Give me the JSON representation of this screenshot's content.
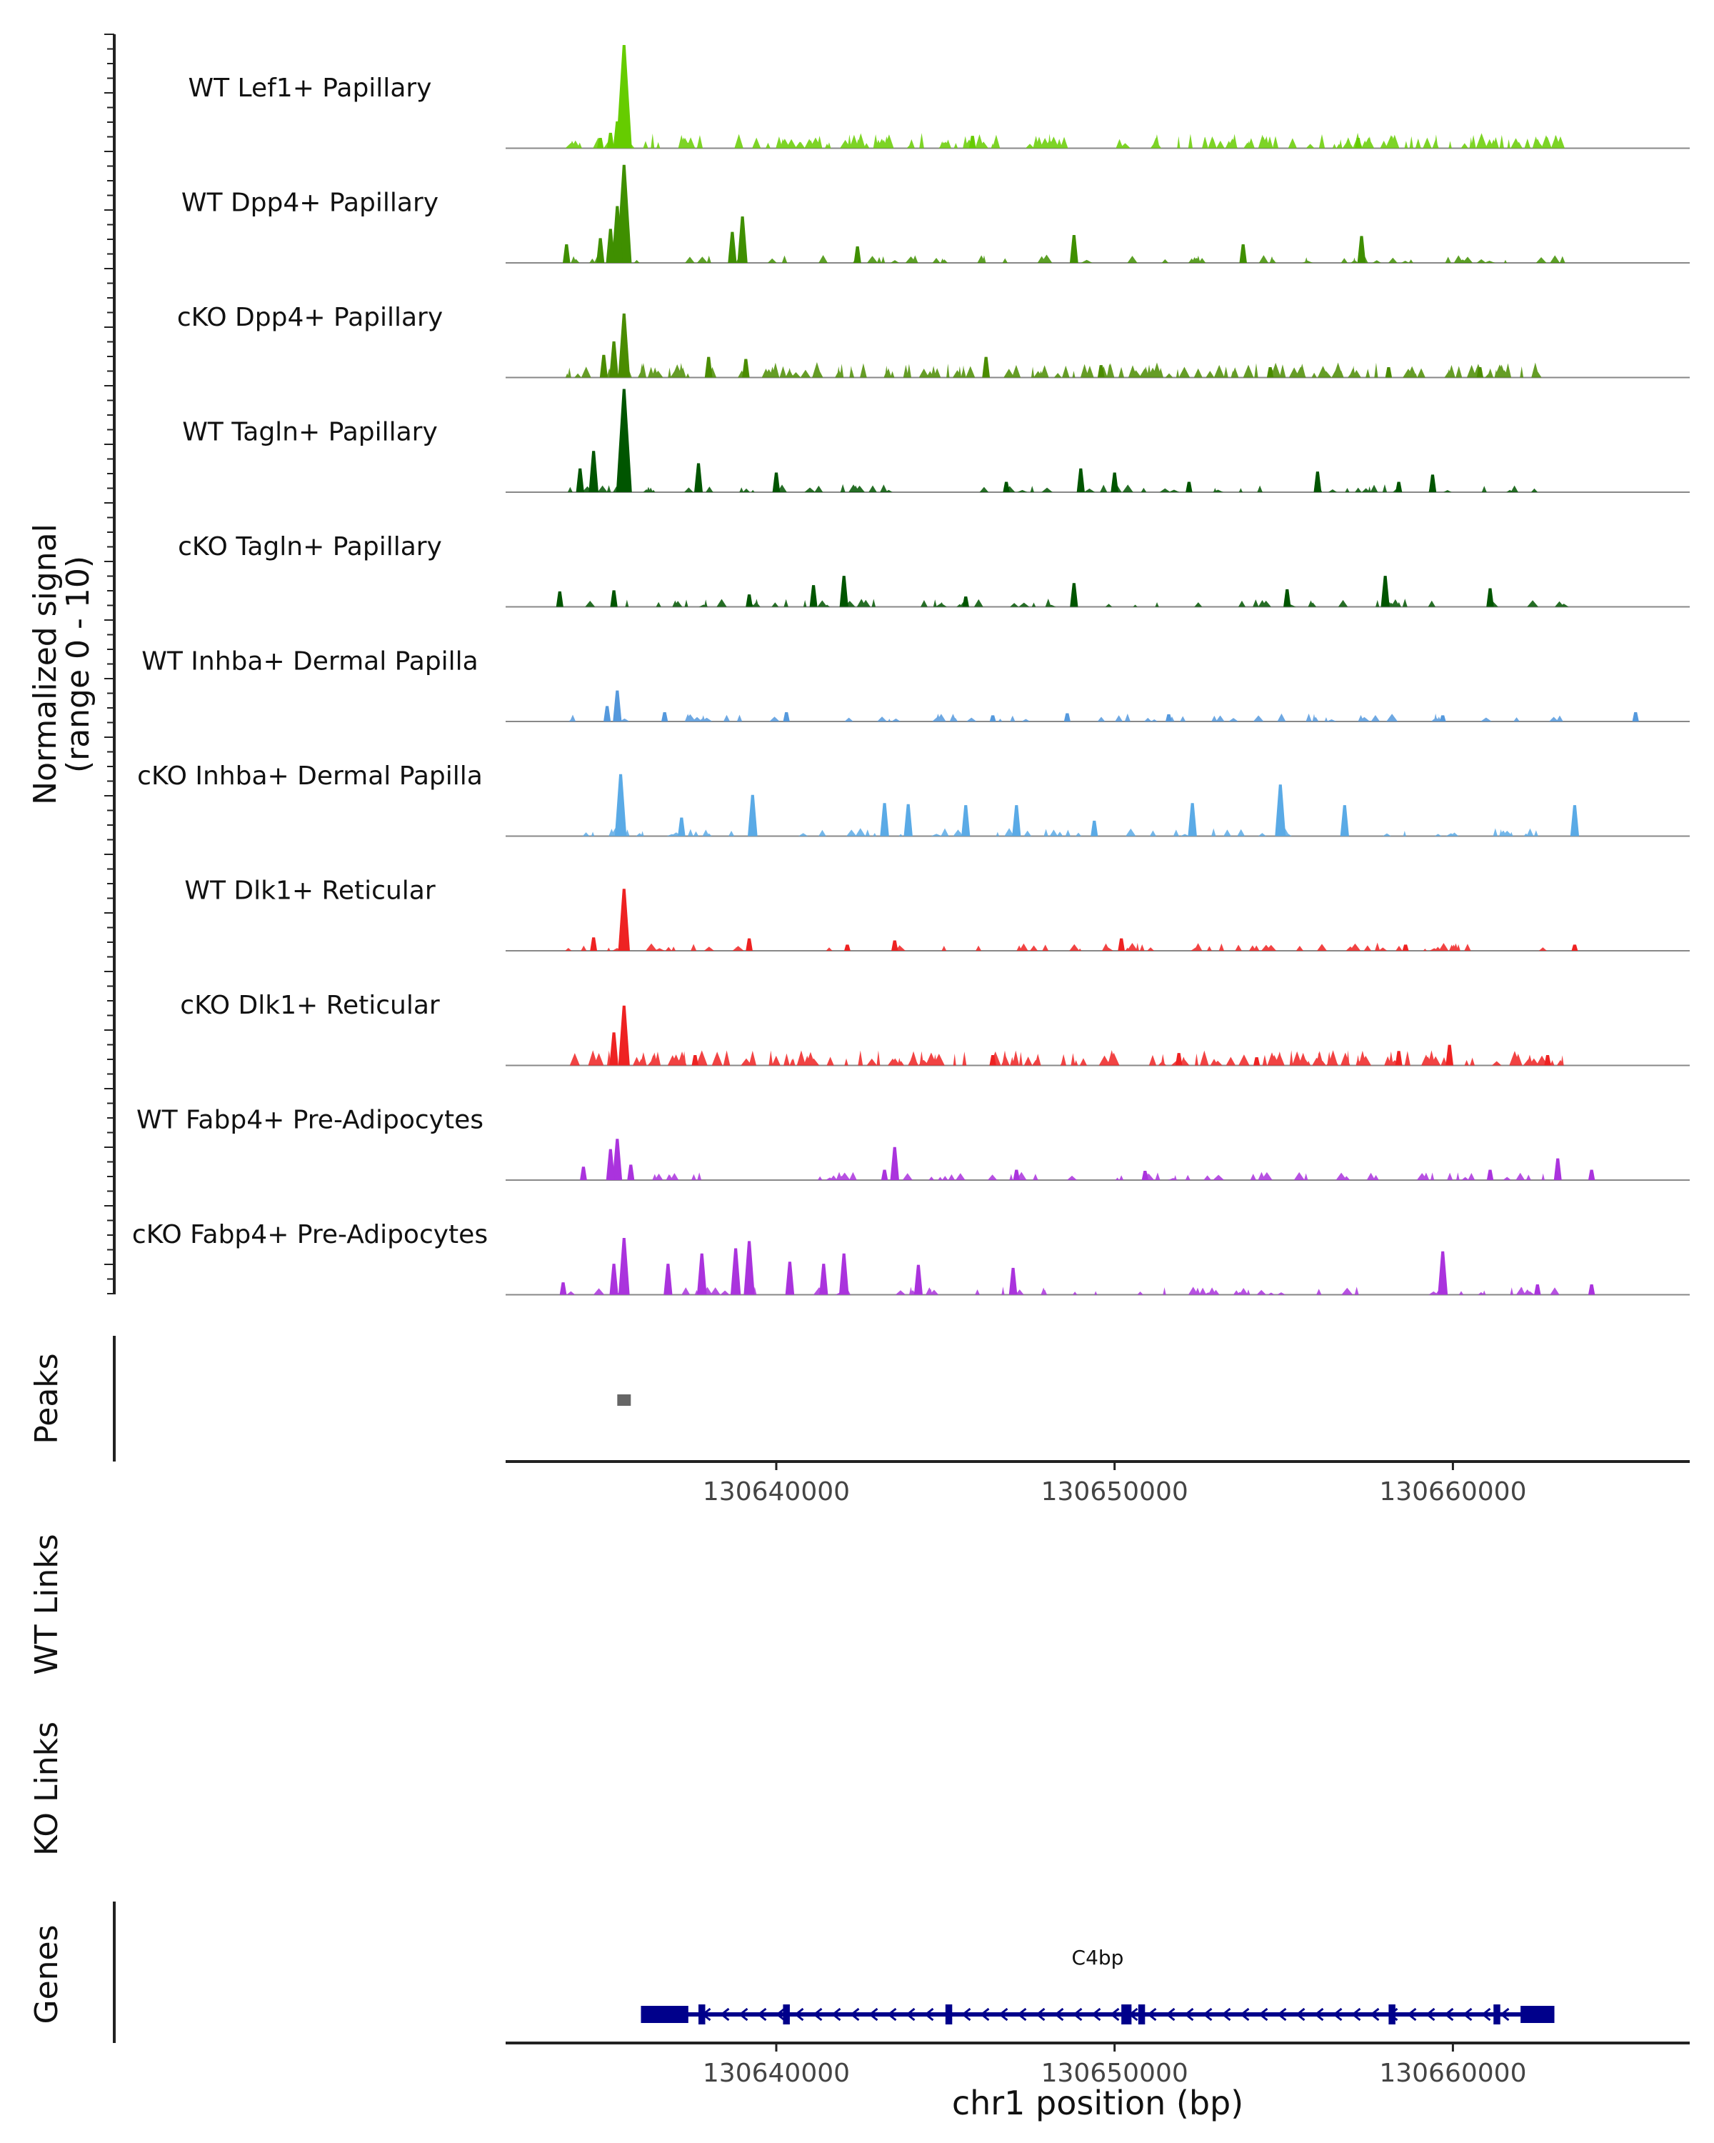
{
  "chart_data": {
    "type": "area",
    "chromosome": "chr1",
    "xlim": [
      130632000,
      130667000
    ],
    "x_ticks": [
      130640000,
      130650000,
      130660000
    ],
    "x_tick_labels": [
      "130640000",
      "130650000",
      "130660000"
    ],
    "xlabel": "chr1 position (bp)",
    "ylabel_line1": "Normalized signal",
    "ylabel_line2": "(range 0 - 10)",
    "ylim": [
      0,
      10
    ],
    "tracks": [
      {
        "name": "WT Lef1+ Papillary",
        "color": "#66cc00",
        "density": "dense",
        "peaks": [
          [
            130635500,
            10.0
          ],
          [
            130635300,
            2.6
          ],
          [
            130635100,
            1.5
          ],
          [
            130634800,
            1.0
          ],
          [
            130645800,
            1.2
          ],
          [
            130657200,
            1.0
          ]
        ]
      },
      {
        "name": "WT Dpp4+ Papillary",
        "color": "#3f8f00",
        "density": "sparse",
        "peaks": [
          [
            130635500,
            9.5
          ],
          [
            130635300,
            5.5
          ],
          [
            130635100,
            3.3
          ],
          [
            130634800,
            2.4
          ],
          [
            130633800,
            1.8
          ],
          [
            130639000,
            4.5
          ],
          [
            130638700,
            3.0
          ],
          [
            130648800,
            2.7
          ],
          [
            130657300,
            2.6
          ],
          [
            130653800,
            1.8
          ],
          [
            130642400,
            1.6
          ]
        ]
      },
      {
        "name": "cKO Dpp4+ Papillary",
        "color": "#4a8c00",
        "density": "dense",
        "peaks": [
          [
            130635500,
            6.2
          ],
          [
            130635200,
            3.5
          ],
          [
            130634900,
            2.2
          ],
          [
            130638000,
            2.0
          ],
          [
            130639100,
            1.8
          ],
          [
            130646200,
            2.0
          ],
          [
            130649600,
            1.2
          ],
          [
            130654600,
            1.0
          ],
          [
            130658100,
            1.0
          ],
          [
            130660800,
            1.0
          ]
        ]
      },
      {
        "name": "WT Tagln+ Papillary",
        "color": "#005500",
        "density": "sparse",
        "peaks": [
          [
            130635500,
            10.0
          ],
          [
            130634600,
            4.0
          ],
          [
            130634200,
            2.3
          ],
          [
            130637700,
            2.8
          ],
          [
            130640000,
            1.9
          ],
          [
            130646800,
            1.0
          ],
          [
            130649000,
            2.3
          ],
          [
            130650000,
            1.9
          ],
          [
            130656000,
            2.0
          ],
          [
            130659400,
            1.7
          ],
          [
            130658400,
            1.0
          ],
          [
            130652200,
            1.0
          ]
        ]
      },
      {
        "name": "cKO Tagln+ Papillary",
        "color": "#005500",
        "density": "sparse",
        "peaks": [
          [
            130642000,
            3.0
          ],
          [
            130641100,
            2.1
          ],
          [
            130635200,
            1.6
          ],
          [
            130633600,
            1.5
          ],
          [
            130648800,
            2.3
          ],
          [
            130658000,
            3.0
          ],
          [
            130661100,
            1.8
          ],
          [
            130655100,
            1.7
          ],
          [
            130645600,
            1.0
          ],
          [
            130639200,
            1.2
          ]
        ]
      },
      {
        "name": "WT Inhba+ Dermal Papilla",
        "color": "#5599dd",
        "density": "sparse",
        "peaks": [
          [
            130635300,
            3.0
          ],
          [
            130635000,
            1.5
          ],
          [
            130636700,
            0.9
          ],
          [
            130640300,
            0.9
          ],
          [
            130648600,
            0.8
          ],
          [
            130651600,
            0.7
          ],
          [
            130659700,
            0.6
          ],
          [
            130665400,
            0.9
          ],
          [
            130646400,
            0.6
          ]
        ]
      },
      {
        "name": "cKO Inhba+ Dermal Papilla",
        "color": "#5aaae6",
        "density": "sparse",
        "peaks": [
          [
            130635400,
            6.0
          ],
          [
            130639300,
            4.0
          ],
          [
            130643200,
            3.2
          ],
          [
            130643900,
            3.1
          ],
          [
            130645600,
            3.0
          ],
          [
            130647100,
            3.0
          ],
          [
            130652300,
            3.2
          ],
          [
            130654900,
            5.0
          ],
          [
            130656800,
            3.0
          ],
          [
            130663600,
            3.0
          ],
          [
            130637200,
            1.8
          ],
          [
            130649400,
            1.5
          ]
        ]
      },
      {
        "name": "WT Dlk1+ Reticular",
        "color": "#ee2222",
        "density": "sparse",
        "peaks": [
          [
            130635500,
            6.0
          ],
          [
            130634600,
            1.3
          ],
          [
            130639200,
            1.2
          ],
          [
            130643500,
            1.0
          ],
          [
            130650200,
            1.2
          ],
          [
            130658600,
            0.6
          ],
          [
            130663600,
            0.6
          ],
          [
            130642100,
            0.6
          ]
        ]
      },
      {
        "name": "cKO Dlk1+ Reticular",
        "color": "#ee2222",
        "density": "dense",
        "peaks": [
          [
            130635500,
            5.8
          ],
          [
            130635200,
            3.2
          ],
          [
            130659900,
            2.0
          ],
          [
            130658400,
            1.4
          ],
          [
            130651900,
            1.2
          ],
          [
            130646400,
            1.0
          ],
          [
            130662800,
            1.0
          ],
          [
            130637600,
            1.0
          ],
          [
            130654200,
            0.8
          ]
        ]
      },
      {
        "name": "WT Fabp4+ Pre-Adipocytes",
        "color": "#aa33dd",
        "density": "sparse",
        "peaks": [
          [
            130635300,
            4.0
          ],
          [
            130635100,
            3.0
          ],
          [
            130635700,
            1.5
          ],
          [
            130634300,
            1.3
          ],
          [
            130643500,
            3.2
          ],
          [
            130643200,
            1.0
          ],
          [
            130647100,
            1.0
          ],
          [
            130650900,
            0.9
          ],
          [
            130663100,
            2.1
          ],
          [
            130661100,
            1.0
          ],
          [
            130664100,
            1.0
          ]
        ]
      },
      {
        "name": "cKO Fabp4+ Pre-Adipocytes",
        "color": "#aa33dd",
        "density": "sparse",
        "peaks": [
          [
            130635500,
            5.5
          ],
          [
            130635200,
            3.0
          ],
          [
            130639200,
            5.2
          ],
          [
            130638800,
            4.5
          ],
          [
            130637800,
            4.0
          ],
          [
            130642000,
            4.0
          ],
          [
            130640400,
            3.2
          ],
          [
            130644200,
            2.9
          ],
          [
            130647000,
            2.6
          ],
          [
            130659700,
            4.2
          ],
          [
            130633700,
            1.2
          ],
          [
            130636800,
            3.0
          ],
          [
            130641400,
            3.0
          ],
          [
            130662500,
            1.0
          ],
          [
            130664100,
            1.0
          ]
        ]
      }
    ],
    "peaks_track": {
      "label": "Peaks",
      "intervals": [
        [
          130635300,
          130635700
        ]
      ],
      "color": "#666666"
    },
    "links_tracks": [
      {
        "label": "WT Links"
      },
      {
        "label": "KO Links"
      }
    ],
    "genes_track": {
      "label": "Genes",
      "color": "#00008b",
      "gene": {
        "name": "C4bp",
        "start": 130636000,
        "end": 130663000,
        "strand": "-",
        "exons": [
          [
            130636000,
            130637400
          ],
          [
            130637700,
            130637900
          ],
          [
            130640200,
            130640400
          ],
          [
            130645000,
            130645200
          ],
          [
            130650200,
            130650500
          ],
          [
            130650700,
            130650900
          ],
          [
            130658100,
            130658300
          ],
          [
            130661200,
            130661400
          ],
          [
            130662000,
            130663000
          ]
        ]
      }
    }
  }
}
